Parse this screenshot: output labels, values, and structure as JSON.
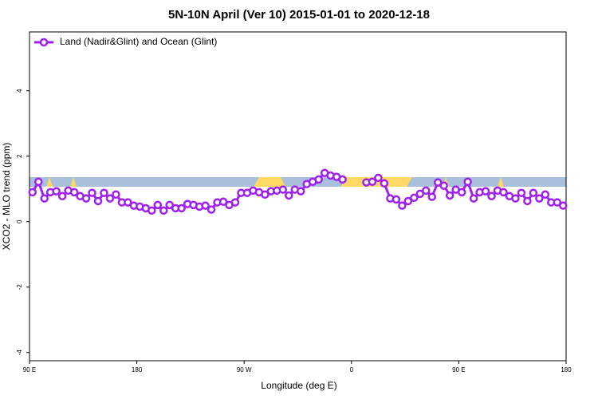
{
  "chart_data": {
    "type": "line",
    "title": "5N-10N April (Ver 10)   2015-01-01 to 2020-12-18",
    "x_label": "Longitude (deg E)",
    "y_label": "XCO2 - MLO trend (ppm)",
    "xlim": [
      90,
      540
    ],
    "xticks": [
      {
        "value": 90,
        "label": "90 E"
      },
      180,
      {
        "value": 270,
        "label": "90 W"
      },
      {
        "value": 360,
        "label": "0"
      },
      {
        "value": 450,
        "label": "90 E"
      },
      {
        "value": 540,
        "label": "180"
      }
    ],
    "ylim": [
      -4.25,
      5.8
    ],
    "yticks": [
      -4,
      -2,
      0,
      2,
      4
    ],
    "legend_position": "top-left",
    "x": [
      92.5,
      97.5,
      102.5,
      107.5,
      112.5,
      117.5,
      122.5,
      127.5,
      132.5,
      137.5,
      142.5,
      147.5,
      152.5,
      157.5,
      162.5,
      167.5,
      172.5,
      177.5,
      182.5,
      187.5,
      192.5,
      197.5,
      202.5,
      207.5,
      212.5,
      217.5,
      222.5,
      227.5,
      232.5,
      237.5,
      242.5,
      247.5,
      252.5,
      257.5,
      262.5,
      267.5,
      272.5,
      277.5,
      282.5,
      287.5,
      292.5,
      297.5,
      302.5,
      307.5,
      312.5,
      317.5,
      322.5,
      327.5,
      332.5,
      337.5,
      342.5,
      347.5,
      352.5,
      357.5,
      362.5,
      367.5,
      372.5,
      377.5,
      382.5,
      387.5,
      392.5,
      397.5,
      402.5,
      407.5,
      412.5,
      417.5,
      422.5,
      427.5,
      432.5,
      437.5,
      442.5,
      447.5,
      452.5,
      457.5,
      462.5,
      467.5,
      472.5,
      477.5,
      482.5,
      487.5,
      492.5,
      497.5,
      502.5,
      507.5,
      512.5,
      517.5,
      522.5,
      527.5,
      532.5,
      537.5
    ],
    "series": [
      {
        "name": "Land (Nadir&Glint) and Ocean (Glint)",
        "color": "#a020f0",
        "values": [
          0.9,
          1.22,
          0.71,
          0.9,
          0.93,
          0.78,
          0.95,
          0.9,
          0.78,
          0.71,
          0.88,
          0.63,
          0.88,
          0.71,
          0.83,
          0.59,
          0.59,
          0.49,
          0.46,
          0.41,
          0.34,
          0.51,
          0.34,
          0.51,
          0.41,
          0.41,
          0.54,
          0.51,
          0.46,
          0.49,
          0.37,
          0.59,
          0.61,
          0.51,
          0.59,
          0.88,
          0.88,
          0.95,
          0.9,
          0.83,
          0.93,
          0.95,
          0.98,
          0.8,
          0.98,
          0.93,
          1.15,
          1.22,
          1.29,
          1.49,
          1.41,
          1.37,
          1.29,
          null,
          null,
          null,
          1.2,
          1.22,
          1.34,
          1.17,
          0.71,
          0.68,
          0.49,
          0.63,
          0.73,
          0.85,
          0.95,
          0.76,
          1.2,
          1.1,
          0.8,
          0.98,
          0.9,
          1.22,
          0.71,
          0.9,
          0.93,
          0.78,
          0.95,
          0.9,
          0.78,
          0.71,
          0.88,
          0.63,
          0.88,
          0.71,
          0.83,
          0.59,
          0.59,
          0.49
        ]
      }
    ]
  }
}
